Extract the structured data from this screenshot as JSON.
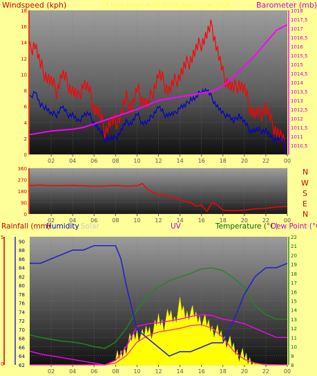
{
  "header": {
    "windspeed_label": "Windspeed (kph)",
    "center_title": "24 hour graph at 00:00 18 September 2008",
    "barometer_label": "Barometer (mb)"
  },
  "lower_header": {
    "rainfall_label": "Rainfall (mm)",
    "humidity_label": "Humidity",
    "solar_label": "Solar",
    "uv_label": "UV",
    "temperature_label": "Temperature (°C)",
    "dewpoint_label": "Dew Point (°C"
  },
  "compass": [
    "N",
    "W",
    "S",
    "E",
    "N"
  ],
  "colors": {
    "background": "#ffff99",
    "windspeed": "#ff0000",
    "gust_avg": "#0000cc",
    "barometer": "#ff00ff",
    "direction": "#ff0000",
    "humidity": "#2222cc",
    "solar": "#ffff00",
    "temperature": "#228822",
    "dewpoint": "#ff00ff"
  },
  "chart_data": [
    {
      "type": "line",
      "name": "wind-barometer",
      "x_ticks": [
        "02",
        "04",
        "06",
        "08",
        "10",
        "12",
        "14",
        "16",
        "18",
        "20",
        "22",
        "00"
      ],
      "left_ticks": [
        "0",
        "2",
        "4",
        "6",
        "8",
        "10",
        "12",
        "14",
        "16",
        "18"
      ],
      "right_ticks": [
        "1010,5",
        "1011",
        "1011,5",
        "1012",
        "1012,5",
        "1013",
        "1013,5",
        "1014",
        "1014,5",
        "1015",
        "1015,5",
        "1016",
        "1016,5",
        "1017",
        "1017,5",
        "1018"
      ],
      "xlim": [
        0,
        24
      ],
      "ylim_left": [
        0,
        18
      ],
      "ylim_right": [
        1010,
        1018
      ],
      "series": [
        {
          "name": "Windspeed",
          "axis": "left",
          "style": "spiky",
          "color": "#ff0000",
          "x": [
            0,
            0.5,
            1,
            1.5,
            2,
            2.5,
            3,
            3.5,
            4,
            4.5,
            5,
            5.5,
            6,
            6.5,
            7,
            7.5,
            8,
            8.5,
            9,
            9.5,
            10,
            10.5,
            11,
            11.5,
            12,
            12.5,
            13,
            13.5,
            14,
            14.5,
            15,
            15.5,
            16,
            16.5,
            17,
            17.5,
            18,
            18.5,
            19,
            19.5,
            20,
            20.5,
            21,
            21.5,
            22,
            22.5,
            23,
            23.5,
            24
          ],
          "y": [
            13,
            14,
            11,
            10,
            9,
            8,
            10,
            9,
            8,
            7,
            9,
            8,
            6,
            5,
            3,
            4,
            4,
            5,
            7,
            6,
            8,
            7,
            6,
            8,
            10,
            9,
            8,
            9,
            10,
            11,
            12,
            13,
            14,
            15,
            16,
            13,
            10,
            9,
            8,
            9,
            8,
            6,
            5,
            5,
            6,
            4,
            3,
            2,
            0
          ]
        },
        {
          "name": "Average",
          "axis": "left",
          "style": "spiky",
          "color": "#0000cc",
          "x": [
            0,
            0.5,
            1,
            1.5,
            2,
            2.5,
            3,
            3.5,
            4,
            4.5,
            5,
            5.5,
            6,
            6.5,
            7,
            7.5,
            8,
            8.5,
            9,
            9.5,
            10,
            10.5,
            11,
            11.5,
            12,
            12.5,
            13,
            13.5,
            14,
            14.5,
            15,
            15.5,
            16,
            16.5,
            17,
            17.5,
            18,
            18.5,
            19,
            19.5,
            20,
            20.5,
            21,
            21.5,
            22,
            22.5,
            23,
            23.5,
            24
          ],
          "y": [
            7,
            8,
            6,
            6,
            5,
            5,
            6,
            5,
            5,
            4,
            5,
            5,
            4,
            3,
            2,
            2,
            2,
            3,
            4,
            4,
            5,
            4,
            4,
            5,
            6,
            5,
            5,
            5,
            6,
            6,
            7,
            7,
            8,
            8,
            7,
            6,
            5,
            5,
            4,
            5,
            4,
            3,
            3,
            3,
            3,
            2,
            2,
            2,
            0
          ]
        },
        {
          "name": "Barometer",
          "axis": "right",
          "style": "smooth",
          "color": "#ff00ff",
          "x": [
            0,
            1,
            2,
            3,
            4,
            5,
            6,
            7,
            8,
            9,
            10,
            11,
            12,
            13,
            14,
            15,
            16,
            17,
            18,
            19,
            20,
            21,
            22,
            23,
            24
          ],
          "y": [
            1011.1,
            1011.2,
            1011.3,
            1011.35,
            1011.4,
            1011.5,
            1011.7,
            1011.9,
            1012.1,
            1012.3,
            1012.5,
            1012.75,
            1013.0,
            1013.1,
            1013.2,
            1013.3,
            1013.4,
            1013.5,
            1013.8,
            1014.3,
            1014.9,
            1015.5,
            1016.2,
            1016.9,
            1017.2
          ]
        }
      ]
    },
    {
      "type": "line",
      "name": "wind-direction",
      "x_ticks": [
        "02",
        "04",
        "06",
        "08",
        "10",
        "12",
        "14",
        "16",
        "18",
        "20",
        "22",
        "00"
      ],
      "y_ticks": [
        "0",
        "90",
        "180",
        "270",
        "360"
      ],
      "xlim": [
        0,
        24
      ],
      "ylim": [
        0,
        360
      ],
      "series": [
        {
          "name": "Direction",
          "color": "#ff0000",
          "x": [
            0,
            1,
            2,
            3,
            4,
            5,
            6,
            7,
            8,
            9,
            10,
            10.5,
            11,
            11.5,
            12,
            13,
            14,
            15,
            15.5,
            16,
            16.5,
            17,
            17.5,
            18,
            19,
            20,
            21,
            22,
            23,
            24
          ],
          "y": [
            225,
            228,
            222,
            224,
            226,
            222,
            218,
            220,
            225,
            218,
            222,
            240,
            190,
            170,
            150,
            140,
            110,
            90,
            60,
            70,
            20,
            90,
            70,
            30,
            25,
            30,
            40,
            45,
            55,
            60
          ]
        }
      ]
    },
    {
      "type": "line",
      "name": "humidity-temperature",
      "x_ticks": [
        "02",
        "04",
        "06",
        "08",
        "10",
        "12",
        "14",
        "16",
        "18",
        "20",
        "22",
        "00"
      ],
      "left_ticks": [
        "62",
        "64",
        "66",
        "68",
        "70",
        "72",
        "74",
        "76",
        "78",
        "80",
        "82",
        "84",
        "86",
        "88",
        "90"
      ],
      "right_ticks": [
        "8",
        "9",
        "10",
        "11",
        "12",
        "13",
        "14",
        "15",
        "16",
        "17",
        "18",
        "19",
        "20",
        "21",
        "22"
      ],
      "xlim": [
        0,
        24
      ],
      "ylim_left": [
        62,
        91
      ],
      "ylim_right": [
        8,
        22
      ],
      "series": [
        {
          "name": "Humidity",
          "axis": "left",
          "color": "#2222cc",
          "x": [
            0,
            1,
            2,
            3,
            4,
            5,
            6,
            7,
            8,
            8.5,
            9,
            9.5,
            10,
            11,
            12,
            13,
            14,
            15,
            16,
            17,
            18,
            19,
            20,
            21,
            22,
            23,
            24
          ],
          "y": [
            85,
            85,
            86,
            87,
            88,
            88,
            89,
            89,
            89,
            86,
            80,
            75,
            70,
            68,
            66,
            64,
            65,
            65,
            66,
            67,
            67,
            72,
            78,
            82,
            84,
            84,
            85
          ]
        },
        {
          "name": "Temperature",
          "axis": "right",
          "color": "#228822",
          "x": [
            0,
            1,
            2,
            3,
            4,
            5,
            6,
            7,
            8,
            9,
            10,
            11,
            12,
            13,
            14,
            15,
            16,
            17,
            18,
            19,
            20,
            21,
            22,
            23,
            24
          ],
          "y": [
            11.3,
            11.0,
            10.8,
            10.6,
            10.5,
            10.3,
            10.0,
            9.8,
            10.5,
            12.0,
            14.0,
            15.5,
            16.5,
            17.2,
            17.6,
            18.0,
            18.5,
            18.6,
            18.3,
            17.5,
            16.5,
            14.5,
            13.5,
            13.0,
            13.0
          ]
        },
        {
          "name": "Dew Point",
          "axis": "right",
          "color": "#ff00ff",
          "x": [
            0,
            1,
            2,
            3,
            4,
            5,
            6,
            7,
            8,
            9,
            10,
            11,
            12,
            13,
            14,
            15,
            16,
            17,
            18,
            19,
            20,
            21,
            22,
            23,
            24
          ],
          "y": [
            9.5,
            9.2,
            9.0,
            8.8,
            8.6,
            8.4,
            8.2,
            8.0,
            8.5,
            10.0,
            12.2,
            12.5,
            12.6,
            12.8,
            13.0,
            13.3,
            13.5,
            13.4,
            13.0,
            12.8,
            12.5,
            12.0,
            11.5,
            11.0,
            11.0
          ]
        },
        {
          "name": "UV",
          "axis": "right",
          "color": "#ff3399",
          "x": [
            0,
            6,
            7,
            8,
            9,
            10,
            11,
            12,
            13,
            14,
            15,
            16,
            17,
            18,
            19,
            20,
            21,
            22,
            24
          ],
          "y": [
            8,
            8,
            8,
            8.2,
            9,
            10.5,
            11.2,
            11.6,
            11.8,
            12.0,
            12.3,
            12.4,
            12.0,
            11.0,
            9.5,
            8.6,
            8.2,
            8,
            8
          ]
        },
        {
          "name": "Solar",
          "axis": "right",
          "style": "filled",
          "color": "#ffff00",
          "x": [
            0,
            7,
            8,
            8.5,
            9,
            9.5,
            10,
            10.5,
            11,
            11.5,
            12,
            12.5,
            13,
            13.5,
            14,
            14.5,
            15,
            15.5,
            16,
            16.5,
            17,
            17.5,
            18,
            18.5,
            19,
            19.5,
            20,
            20.5,
            21,
            24
          ],
          "y": [
            8,
            8,
            8.5,
            9,
            10,
            10.8,
            11.5,
            11.0,
            12.0,
            11.5,
            13.0,
            12.5,
            13.5,
            13.0,
            14.5,
            13.5,
            13.8,
            13.2,
            13.0,
            12.5,
            12.0,
            11.5,
            11.0,
            10.5,
            9.8,
            9.2,
            8.8,
            8.5,
            8.1,
            8
          ]
        }
      ]
    }
  ]
}
